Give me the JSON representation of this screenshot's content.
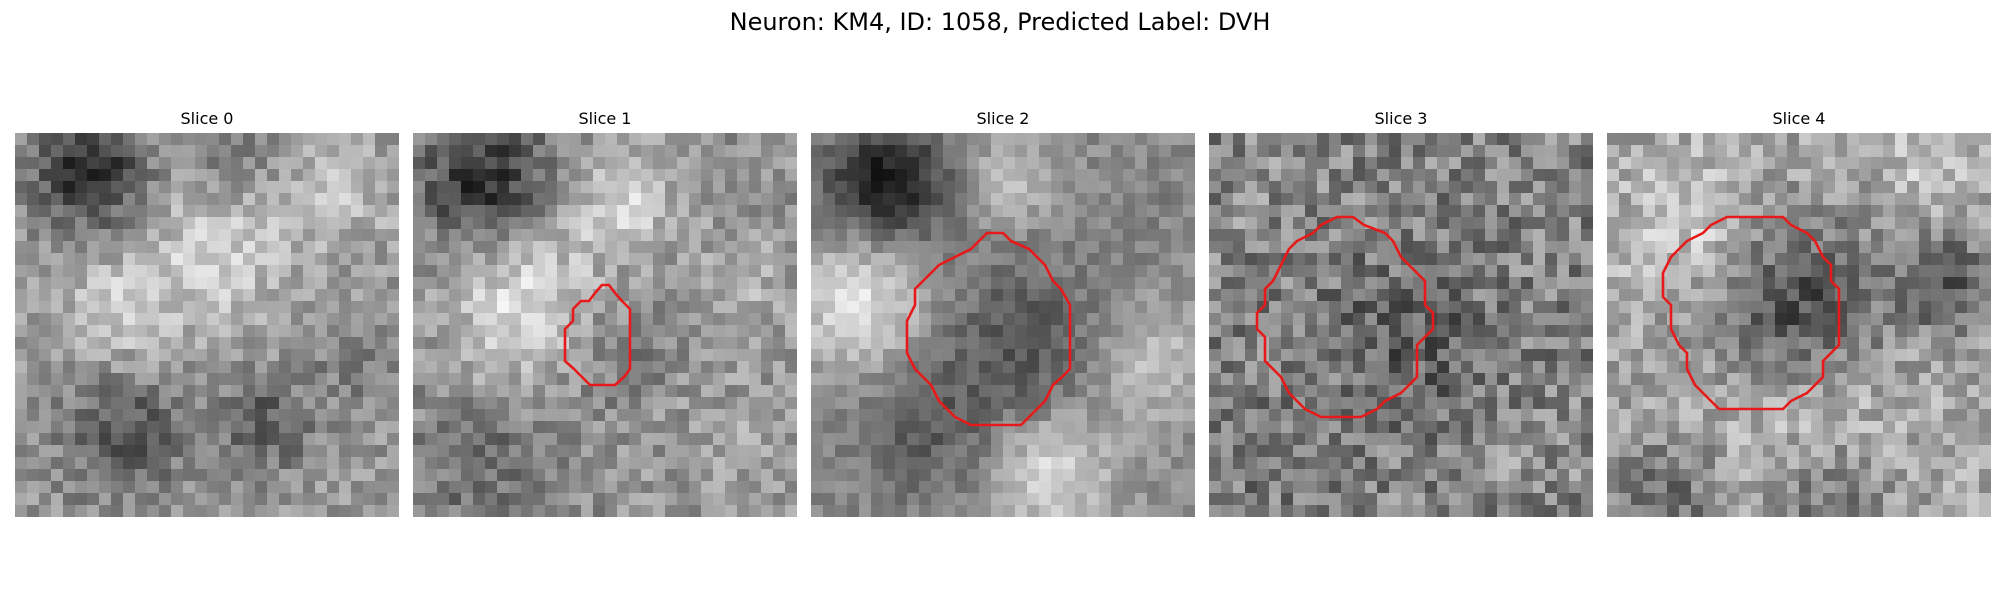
{
  "figure": {
    "title": "Neuron: KM4, ID: 1058, Predicted Label: DVH",
    "contour_color": "#e8191a",
    "image_colormap": "grayscale",
    "slices": [
      {
        "title": "Slice 0",
        "has_contour": false,
        "seed": 11
      },
      {
        "title": "Slice 1",
        "has_contour": true,
        "seed": 23
      },
      {
        "title": "Slice 2",
        "has_contour": true,
        "seed": 37
      },
      {
        "title": "Slice 3",
        "has_contour": true,
        "seed": 53
      },
      {
        "title": "Slice 4",
        "has_contour": true,
        "seed": 71
      }
    ]
  }
}
